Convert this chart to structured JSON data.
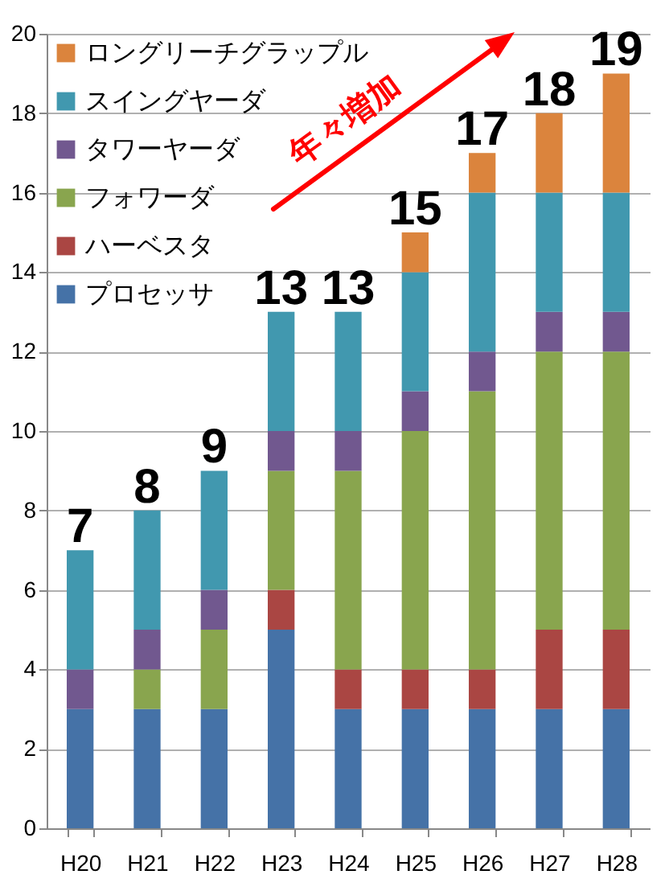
{
  "chart_data": {
    "type": "bar",
    "stacked": true,
    "categories": [
      "H20",
      "H21",
      "H22",
      "H23",
      "H24",
      "H25",
      "H26",
      "H27",
      "H28"
    ],
    "series": [
      {
        "name": "プロセッサ",
        "color": "#4572a7",
        "values": [
          3,
          3,
          3,
          5,
          3,
          3,
          3,
          3,
          3
        ]
      },
      {
        "name": "ハーベスタ",
        "color": "#aa4643",
        "values": [
          0,
          0,
          0,
          1,
          1,
          1,
          1,
          2,
          2
        ]
      },
      {
        "name": "フォワーダ",
        "color": "#89a54e",
        "values": [
          0,
          1,
          2,
          3,
          5,
          6,
          7,
          7,
          7
        ]
      },
      {
        "name": "タワーヤーダ",
        "color": "#71588f",
        "values": [
          1,
          1,
          1,
          1,
          1,
          1,
          1,
          1,
          1
        ]
      },
      {
        "name": "スイングヤーダ",
        "color": "#4198af",
        "values": [
          3,
          3,
          3,
          3,
          3,
          3,
          4,
          3,
          3
        ]
      },
      {
        "name": "ロングリーチグラップル",
        "color": "#db843d",
        "values": [
          0,
          0,
          0,
          0,
          0,
          1,
          1,
          2,
          3
        ]
      }
    ],
    "totals": [
      "7",
      "8",
      "9",
      "13",
      "13",
      "15",
      "17",
      "18",
      "19"
    ],
    "annotations": [
      "年々増加"
    ],
    "ylim": [
      0,
      20
    ],
    "yticks": [
      0,
      2,
      4,
      6,
      8,
      10,
      12,
      14,
      16,
      18,
      20
    ],
    "grid": "y",
    "legend": "top left"
  }
}
